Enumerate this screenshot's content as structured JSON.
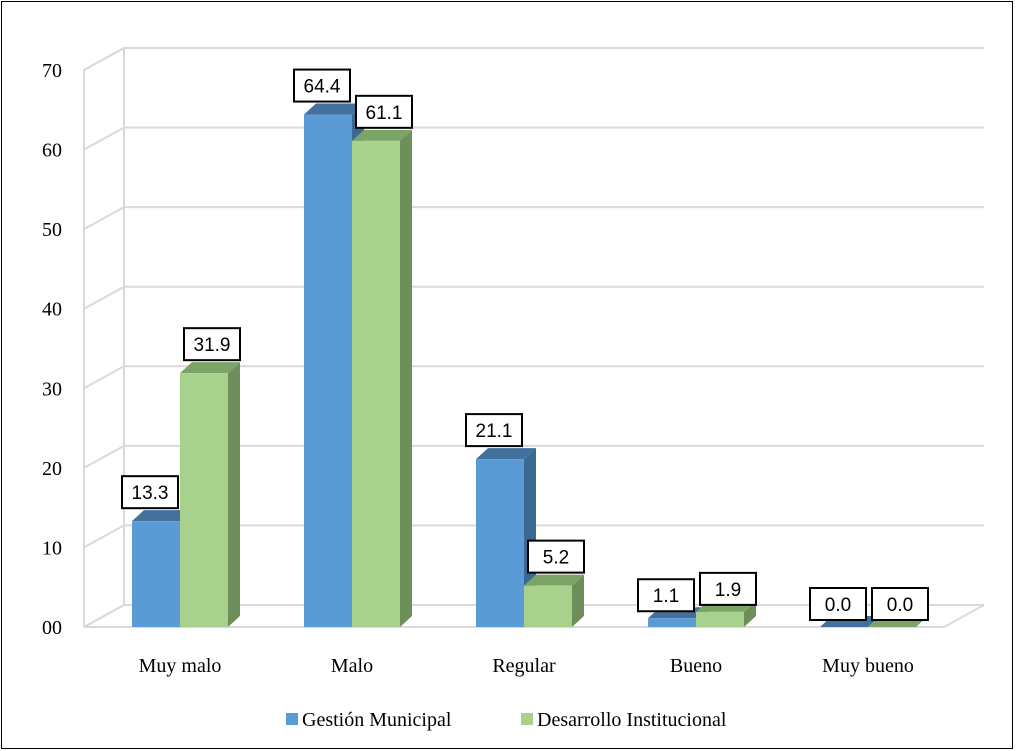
{
  "chart_data": {
    "type": "bar",
    "categories": [
      "Muy malo",
      "Malo",
      "Regular",
      "Bueno",
      "Muy bueno"
    ],
    "series": [
      {
        "name": "Gestión Municipal",
        "values": [
          13.3,
          64.4,
          21.1,
          1.1,
          0.0
        ],
        "labels": [
          "13.3",
          "64.4",
          "21.1",
          "1.1",
          "0.0"
        ]
      },
      {
        "name": "Desarrollo Institucional",
        "values": [
          31.9,
          61.1,
          5.2,
          1.9,
          0.0
        ],
        "labels": [
          "31.9",
          "61.1",
          "5.2",
          "1.9",
          "0.0"
        ]
      }
    ],
    "yticks": [
      "00",
      "10",
      "20",
      "30",
      "40",
      "50",
      "60",
      "70"
    ],
    "ylim": [
      0,
      70
    ],
    "style": "3d-clustered-column",
    "grid": true,
    "legend": "bottom",
    "colors": {
      "series0_front": "#5b9bd5",
      "series0_top": "#41719c",
      "series0_side": "#3a6a94",
      "series1_front": "#a9d18e",
      "series1_top": "#7da467",
      "series1_side": "#6e8f5a",
      "grid": "#d9d9d9"
    }
  }
}
